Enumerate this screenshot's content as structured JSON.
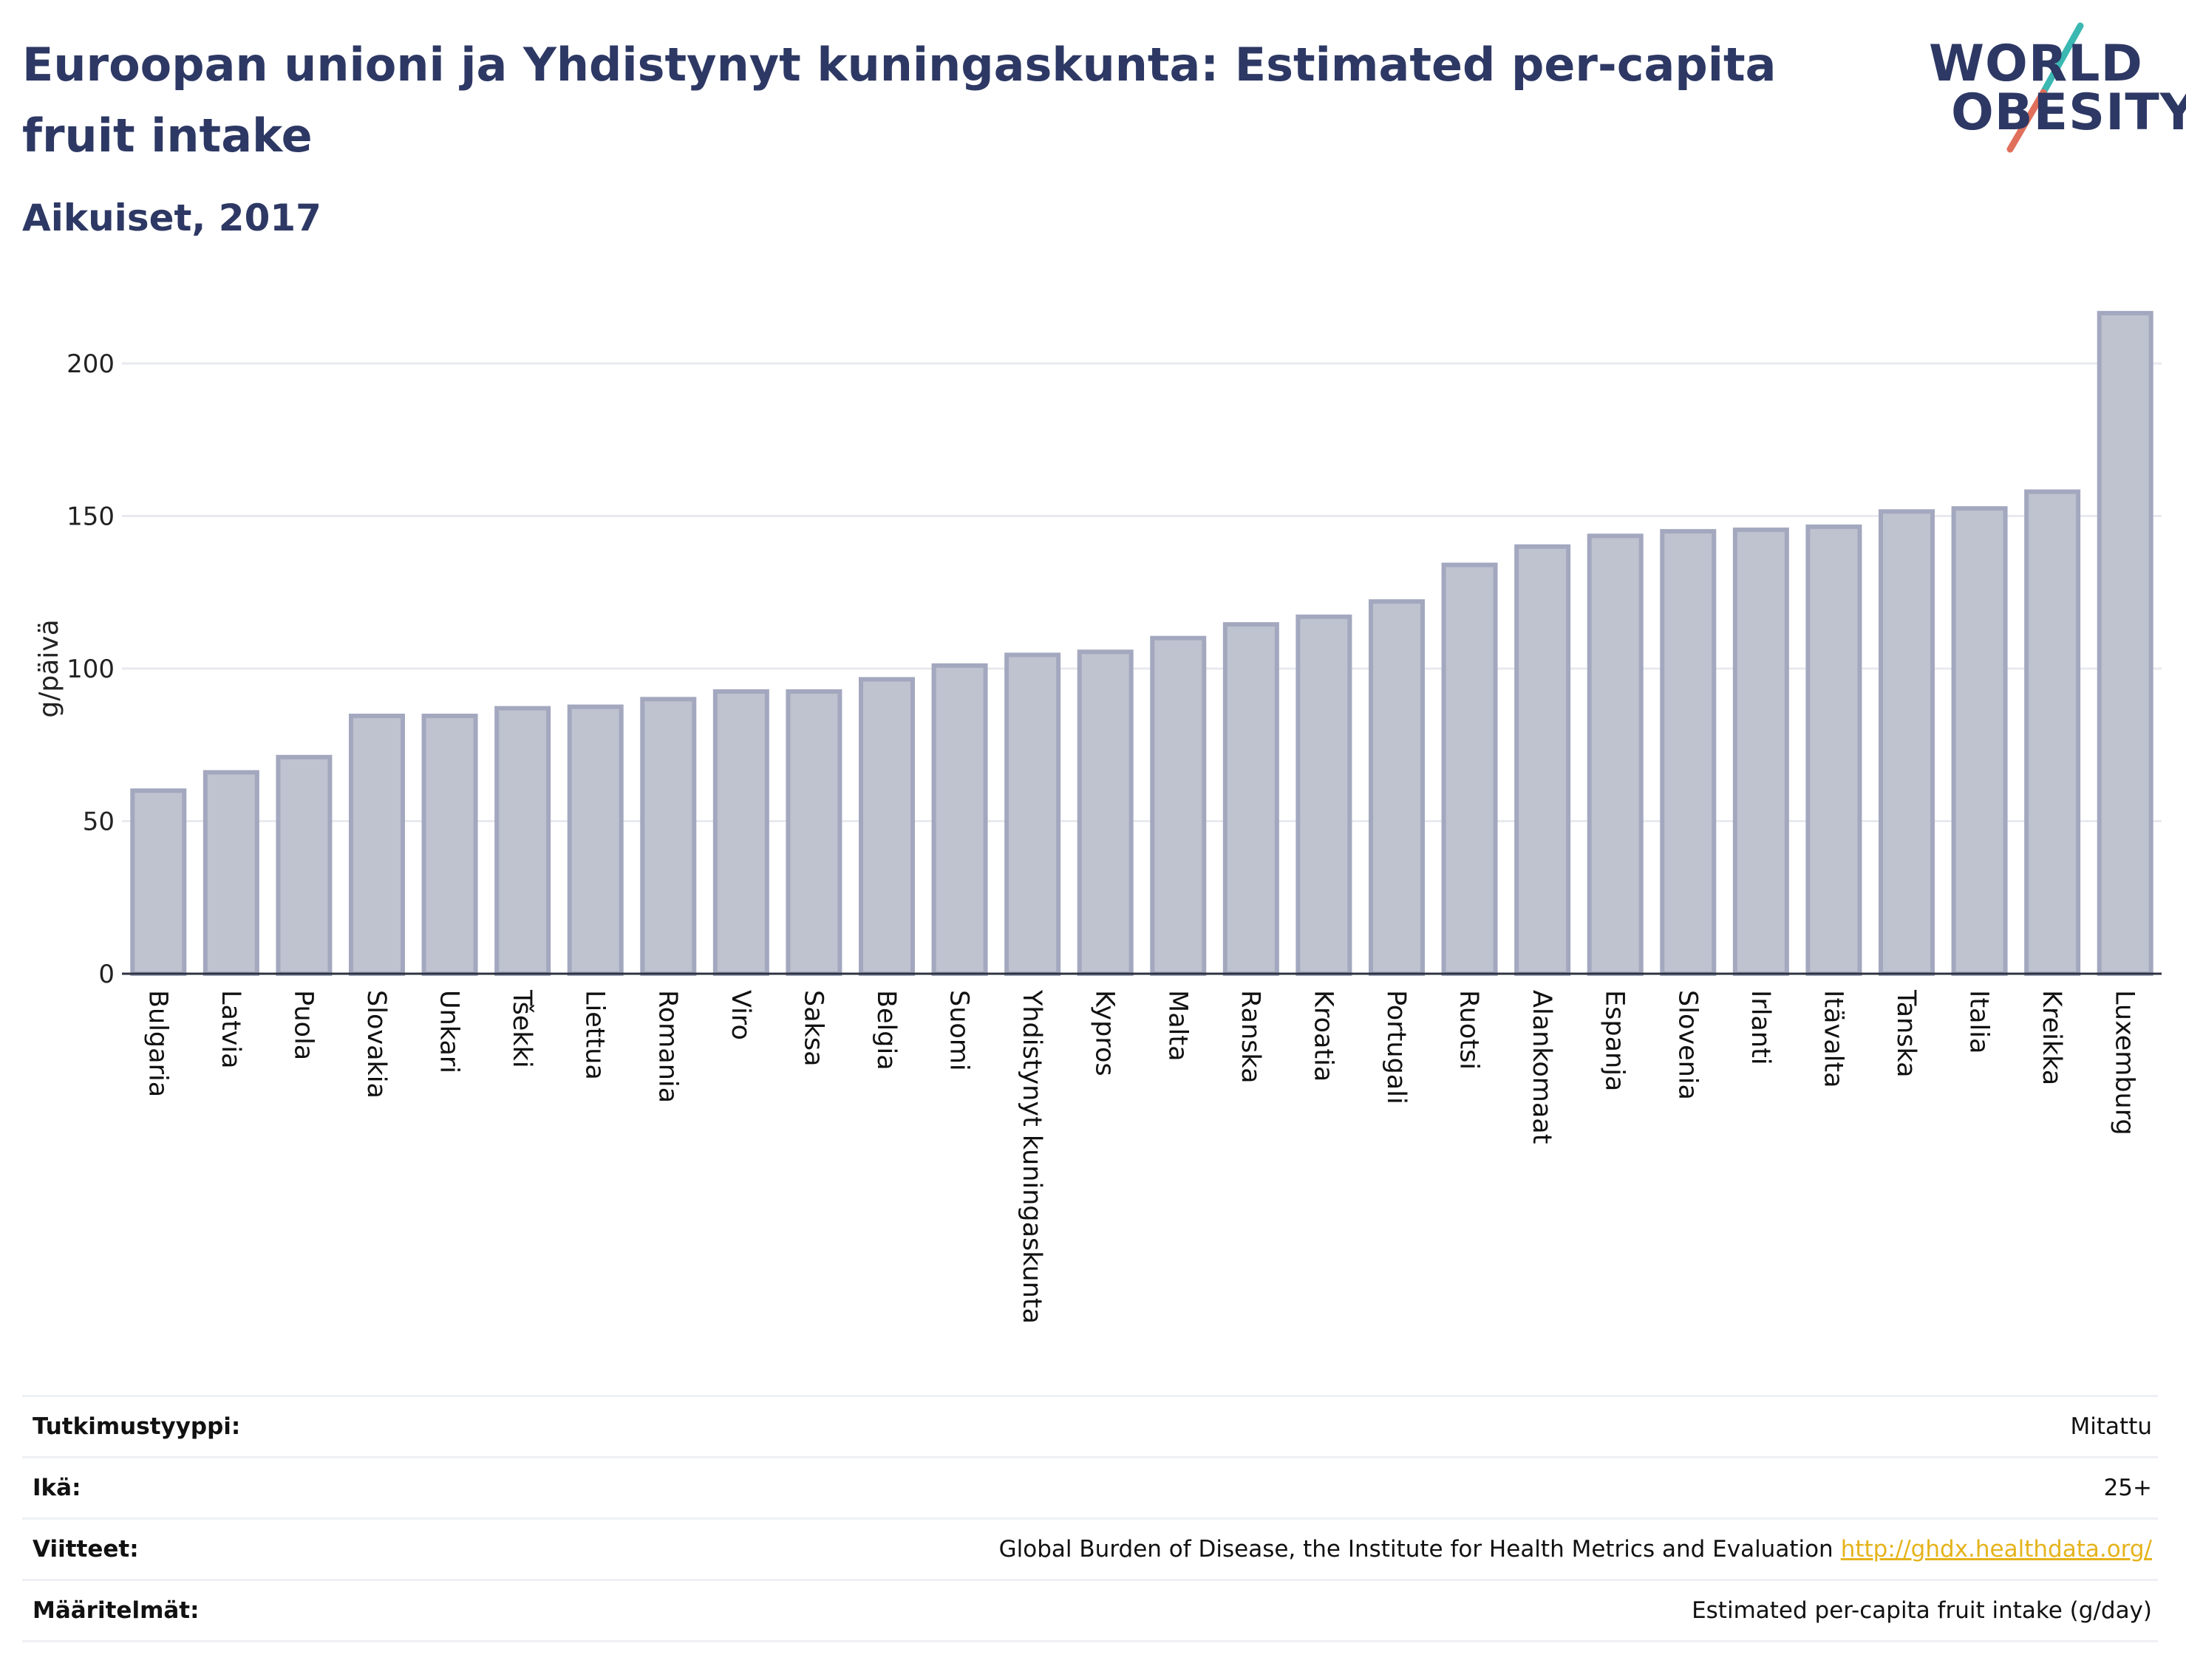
{
  "header": {
    "title": "Euroopan unioni ja Yhdistynyt kuningaskunta: Estimated per-capita fruit intake",
    "subtitle": "Aikuiset, 2017"
  },
  "logo": {
    "line1": "WORLD",
    "line2": "OBESITY",
    "text_color": "#2d3864",
    "slash_colors": [
      "#3bb8b2",
      "#e0705c"
    ]
  },
  "chart_data": {
    "type": "bar",
    "categories": [
      "Bulgaria",
      "Latvia",
      "Puola",
      "Slovakia",
      "Unkari",
      "Tšekki",
      "Liettua",
      "Romania",
      "Viro",
      "Saksa",
      "Belgia",
      "Suomi",
      "Yhdistynyt kuningaskunta",
      "Kypros",
      "Malta",
      "Ranska",
      "Kroatia",
      "Portugali",
      "Ruotsi",
      "Alankomaat",
      "Espanja",
      "Slovenia",
      "Irlanti",
      "Itävalta",
      "Tanska",
      "Italia",
      "Kreikka",
      "Luxemburg"
    ],
    "values": [
      60,
      66,
      71,
      84.5,
      84.5,
      87,
      87.5,
      90,
      92.5,
      92.5,
      96.5,
      101,
      104.5,
      105.5,
      110,
      114.5,
      117,
      122,
      134,
      140,
      143.5,
      145,
      145.5,
      146.5,
      151.5,
      152.5,
      158,
      216.5
    ],
    "ylabel": "g/päivä",
    "xlabel": "",
    "ylim": [
      0,
      220
    ],
    "yticks": [
      0,
      50,
      100,
      150,
      200
    ],
    "grid": true,
    "bar_fill": "#bfc2cf",
    "bar_stroke": "#a3a8bf"
  },
  "meta": [
    {
      "label": "Tutkimustyyppi:",
      "value": "Mitattu"
    },
    {
      "label": "Ikä:",
      "value": "25+"
    },
    {
      "label": "Viitteet:",
      "value": "Global Burden of Disease, the Institute for Health Metrics and Evaluation",
      "link": "http://ghdx.healthdata.org/"
    },
    {
      "label": "Määritelmät:",
      "value": "Estimated per-capita fruit intake (g/day)"
    }
  ]
}
